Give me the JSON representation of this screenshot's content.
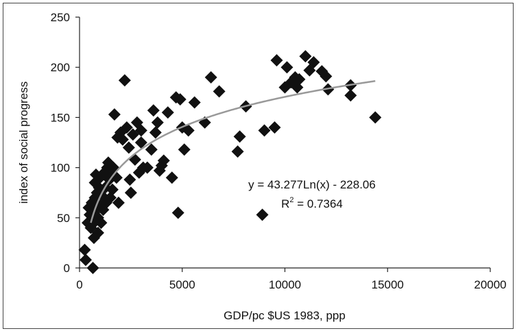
{
  "chart_data": {
    "type": "scatter",
    "xlabel": "GDP/pc $US 1983, ppp",
    "ylabel": "index of social progress",
    "xlim": [
      0,
      20000
    ],
    "ylim": [
      0,
      250
    ],
    "x_ticks": [
      "0",
      "5000",
      "10000",
      "15000",
      "20000"
    ],
    "y_ticks": [
      "0",
      "50",
      "100",
      "150",
      "200",
      "250"
    ],
    "grid": false,
    "marker": "diamond",
    "marker_color": "#111111",
    "trendline": {
      "type": "logarithmic",
      "a": 43.277,
      "b": -228.06,
      "x_range": [
        550,
        14400
      ],
      "color": "#999999",
      "equation_label": "y = 43.277Ln(x) - 228.06",
      "r2_label_prefix": "R",
      "r2_label_sup": "2",
      "r2_label_suffix": " = 0.7364"
    },
    "points": [
      [
        250,
        18
      ],
      [
        300,
        8
      ],
      [
        400,
        45
      ],
      [
        450,
        60
      ],
      [
        500,
        53
      ],
      [
        550,
        40
      ],
      [
        600,
        65
      ],
      [
        650,
        0
      ],
      [
        700,
        55
      ],
      [
        700,
        30
      ],
      [
        700,
        45
      ],
      [
        750,
        70
      ],
      [
        750,
        85
      ],
      [
        800,
        93
      ],
      [
        800,
        60
      ],
      [
        850,
        75
      ],
      [
        900,
        50
      ],
      [
        900,
        35
      ],
      [
        950,
        80
      ],
      [
        1000,
        62
      ],
      [
        1000,
        90
      ],
      [
        1050,
        45
      ],
      [
        1100,
        72
      ],
      [
        1150,
        58
      ],
      [
        1200,
        95
      ],
      [
        1250,
        80
      ],
      [
        1300,
        65
      ],
      [
        1350,
        100
      ],
      [
        1400,
        105
      ],
      [
        1450,
        88
      ],
      [
        1500,
        70
      ],
      [
        1550,
        92
      ],
      [
        1600,
        78
      ],
      [
        1650,
        100
      ],
      [
        1700,
        153
      ],
      [
        1800,
        90
      ],
      [
        1850,
        130
      ],
      [
        1900,
        65
      ],
      [
        2000,
        135
      ],
      [
        2100,
        128
      ],
      [
        2200,
        187
      ],
      [
        2300,
        140
      ],
      [
        2400,
        120
      ],
      [
        2450,
        88
      ],
      [
        2500,
        75
      ],
      [
        2600,
        133
      ],
      [
        2700,
        108
      ],
      [
        2800,
        145
      ],
      [
        2900,
        95
      ],
      [
        3000,
        137
      ],
      [
        3000,
        125
      ],
      [
        3100,
        100
      ],
      [
        3300,
        100
      ],
      [
        3500,
        118
      ],
      [
        3600,
        157
      ],
      [
        3700,
        135
      ],
      [
        3800,
        145
      ],
      [
        3900,
        97
      ],
      [
        4000,
        102
      ],
      [
        4100,
        107
      ],
      [
        4300,
        155
      ],
      [
        4500,
        90
      ],
      [
        4700,
        170
      ],
      [
        4800,
        55
      ],
      [
        4900,
        168
      ],
      [
        5000,
        140
      ],
      [
        5100,
        118
      ],
      [
        5300,
        137
      ],
      [
        5600,
        165
      ],
      [
        6100,
        145
      ],
      [
        6400,
        190
      ],
      [
        6800,
        176
      ],
      [
        7700,
        116
      ],
      [
        7800,
        131
      ],
      [
        8100,
        161
      ],
      [
        8900,
        53
      ],
      [
        9000,
        137
      ],
      [
        9500,
        140
      ],
      [
        9600,
        207
      ],
      [
        10000,
        180
      ],
      [
        10100,
        200
      ],
      [
        10300,
        185
      ],
      [
        10500,
        190
      ],
      [
        10600,
        180
      ],
      [
        10700,
        188
      ],
      [
        11000,
        211
      ],
      [
        11200,
        197
      ],
      [
        11400,
        205
      ],
      [
        11800,
        196
      ],
      [
        12000,
        191
      ],
      [
        12100,
        178
      ],
      [
        13200,
        182
      ],
      [
        13200,
        172
      ],
      [
        14400,
        150
      ]
    ]
  }
}
